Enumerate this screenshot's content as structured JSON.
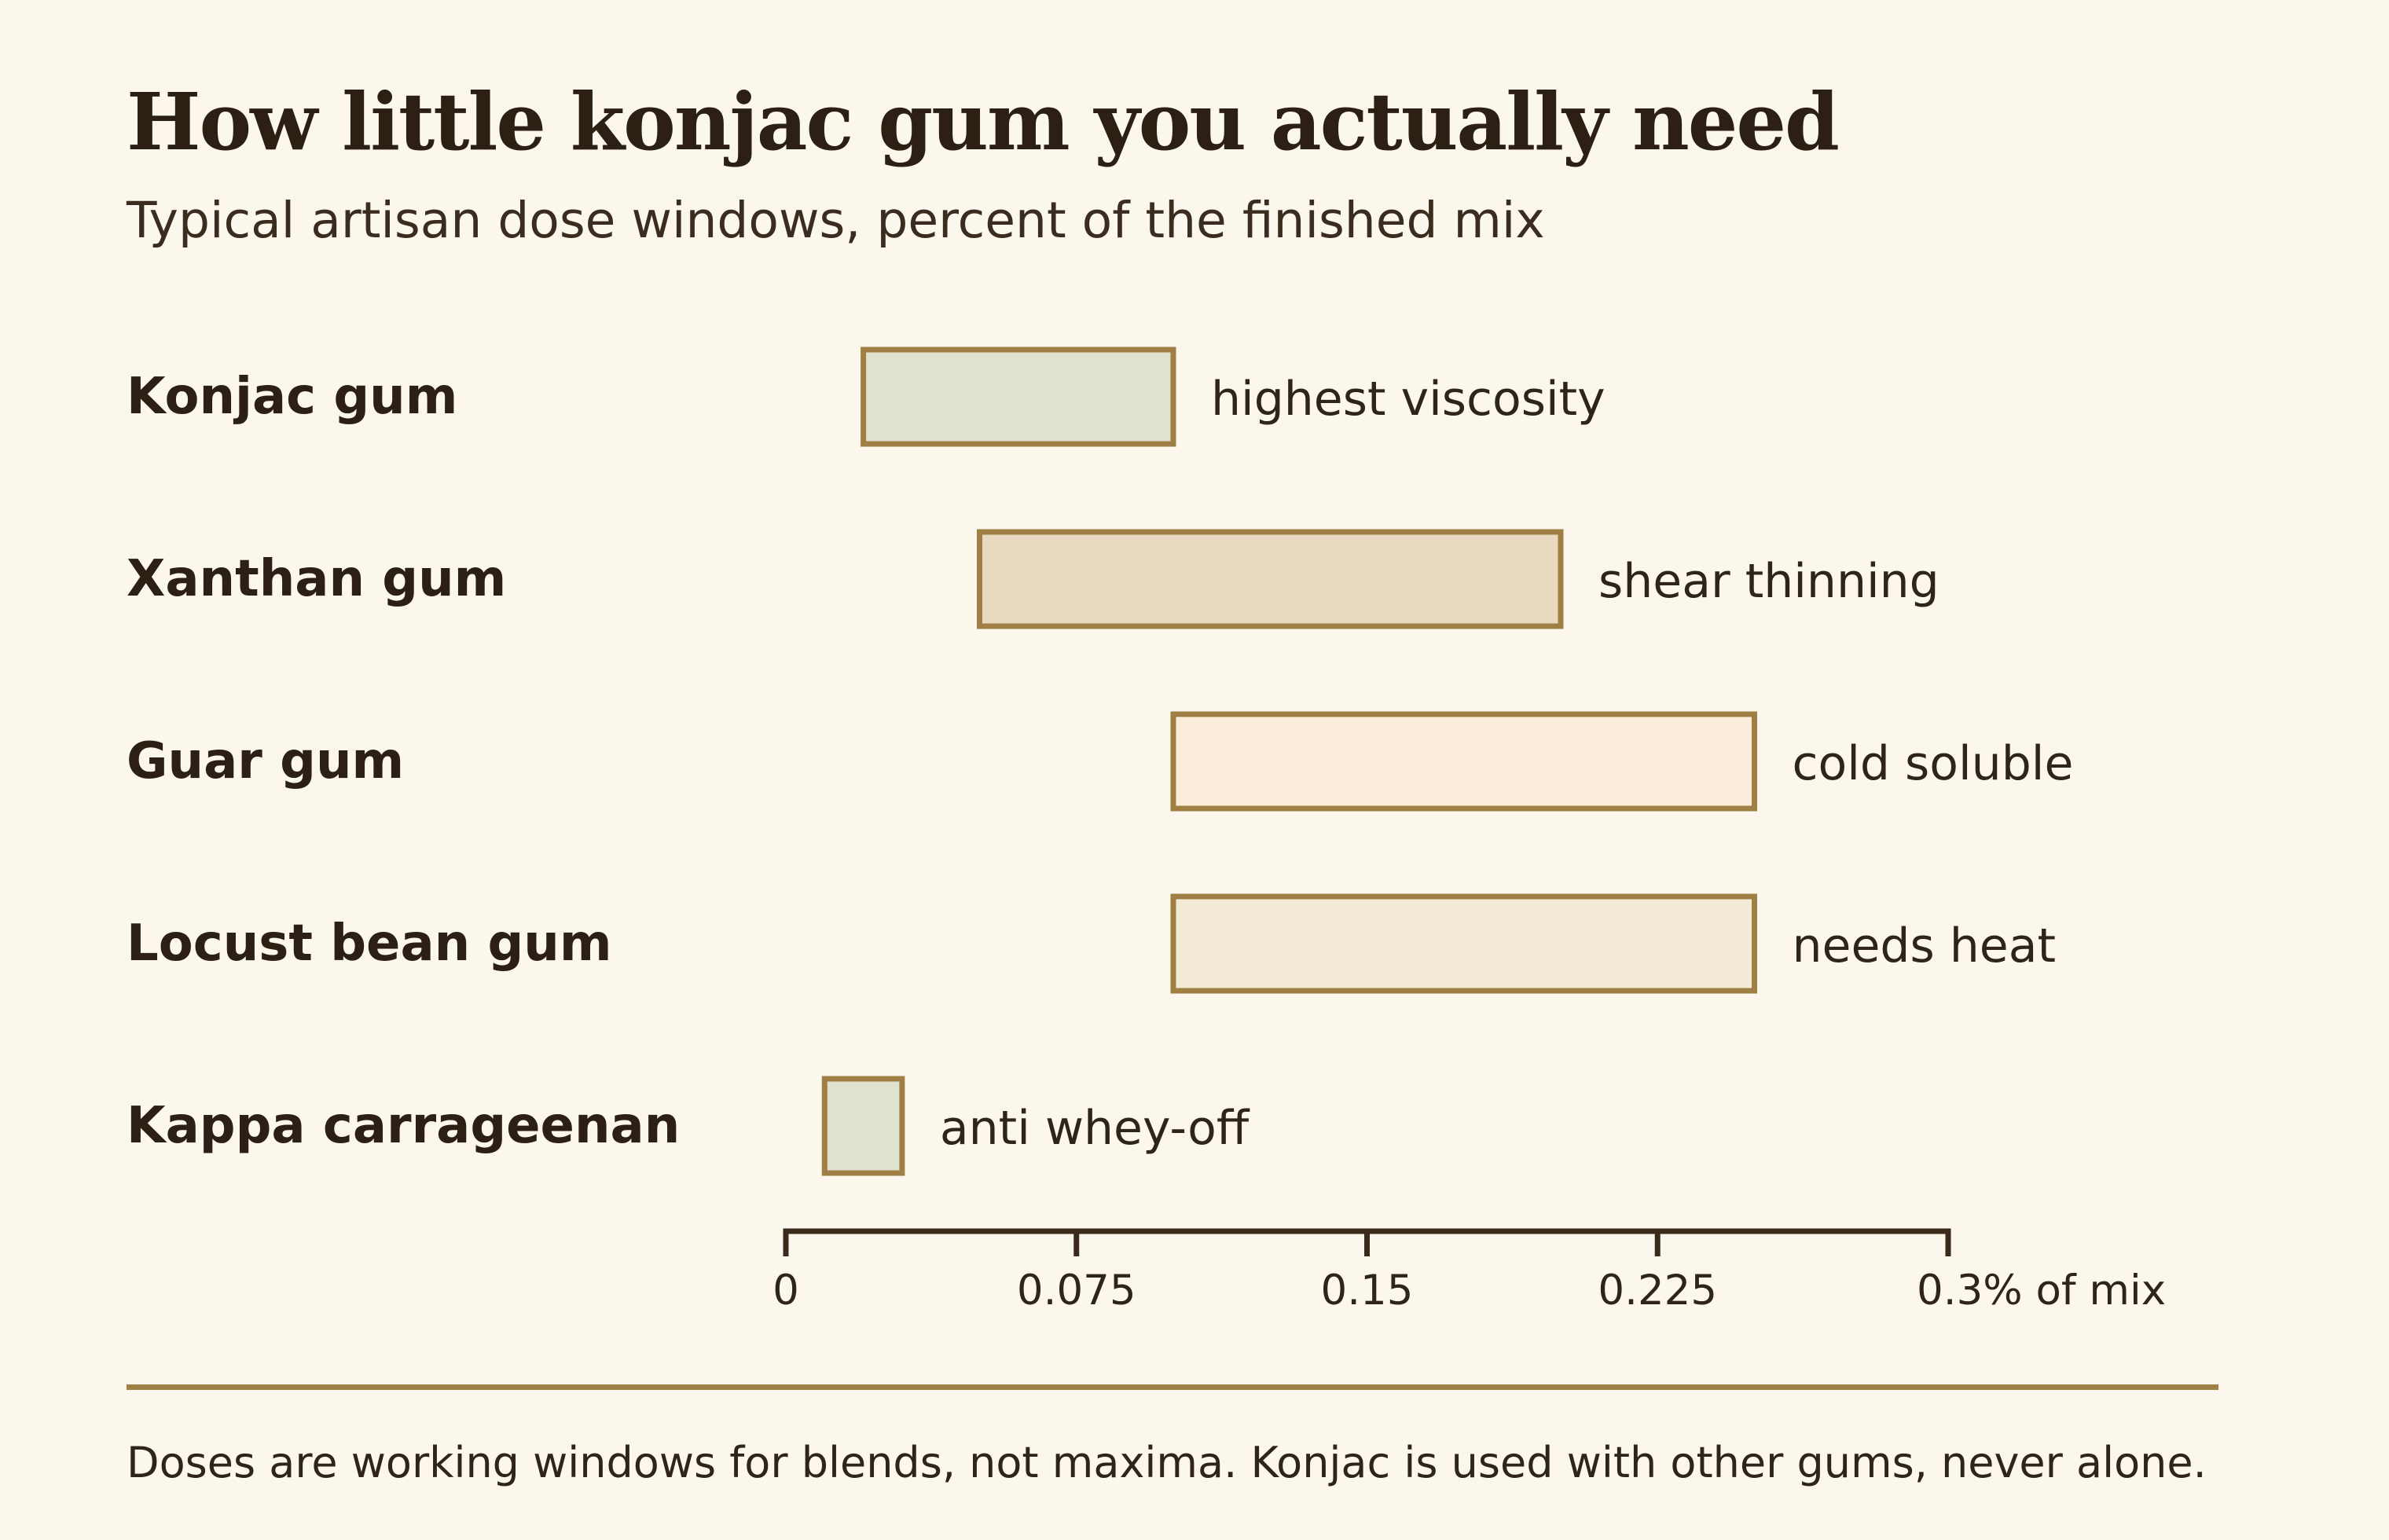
{
  "title": "How little konjac gum you actually need",
  "subtitle": "Typical artisan dose windows, percent of the finished mix",
  "footnote": "Doses are working windows for blends, not maxima. Konjac is used with other gums, never alone.",
  "colors": {
    "background": "#fcf7ec",
    "text": "#2b2013",
    "bar_stroke": "#a07f45",
    "axis": "#3a2a1c",
    "rule": "#a07f45"
  },
  "chart_data": {
    "type": "bar",
    "orientation": "horizontal",
    "subtype": "range",
    "categories": [
      "Konjac gum",
      "Xanthan gum",
      "Guar gum",
      "Locust bean gum",
      "Kappa carrageenan"
    ],
    "ranges": [
      {
        "low": 0.02,
        "high": 0.1,
        "note": "highest viscosity",
        "fill": "#dfe2ce"
      },
      {
        "low": 0.05,
        "high": 0.2,
        "note": "shear thinning",
        "fill": "#e8d9c0"
      },
      {
        "low": 0.1,
        "high": 0.25,
        "note": "cold soluble",
        "fill": "#faeedb"
      },
      {
        "low": 0.1,
        "high": 0.25,
        "note": "needs heat",
        "fill": "#f4ebd6"
      },
      {
        "low": 0.01,
        "high": 0.03,
        "note": "anti whey-off",
        "fill": "#dfe2ce"
      }
    ],
    "xlim": [
      0,
      0.3
    ],
    "ticks": [
      0,
      0.075,
      0.15,
      0.225,
      0.3
    ],
    "tick_labels": [
      "0",
      "0.075",
      "0.15",
      "0.225",
      "0.3% of mix"
    ],
    "grid": false,
    "legend": "none"
  }
}
